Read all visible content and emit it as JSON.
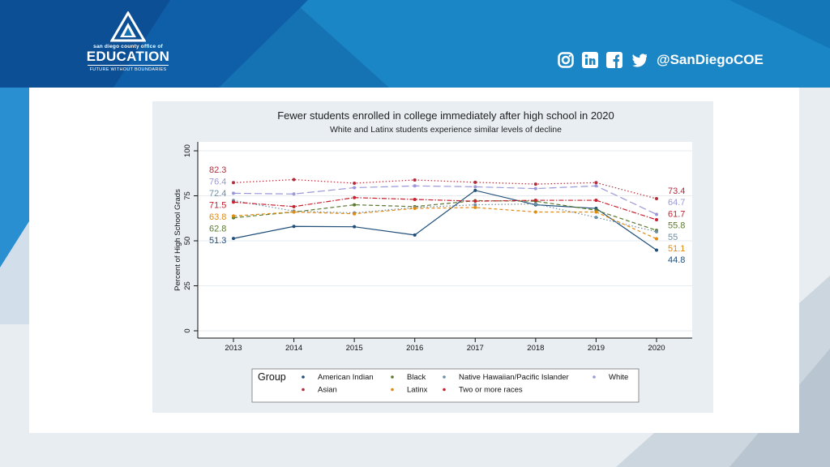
{
  "header": {
    "logo": {
      "line1": "san diego county office of",
      "line2": "EDUCATION",
      "tagline": "FUTURE WITHOUT BOUNDARIES"
    },
    "social": {
      "icons": [
        "instagram-icon",
        "linkedin-icon",
        "facebook-icon",
        "twitter-icon"
      ],
      "handle": "@SanDiegoCOE"
    }
  },
  "chart_data": {
    "type": "line",
    "title": "Fewer students enrolled in college immediately after high school in 2020",
    "subtitle": "White and Latinx students experience similar levels of decline",
    "xlabel": "",
    "ylabel": "Percent of High School Grads",
    "x": [
      2013,
      2014,
      2015,
      2016,
      2017,
      2018,
      2019,
      2020
    ],
    "yticks": [
      0,
      25,
      50,
      75,
      100
    ],
    "ylim": [
      0,
      100
    ],
    "legend_title": "Group",
    "series": [
      {
        "name": "American Indian",
        "color": "#1f4e79",
        "dash": "",
        "values": [
          51.3,
          58.0,
          57.8,
          53.2,
          78.0,
          70.0,
          68.0,
          44.8
        ],
        "start_label": "51.3",
        "end_label": "44.8"
      },
      {
        "name": "Black",
        "color": "#5a7a2e",
        "dash": "5,3",
        "values": [
          62.8,
          66.0,
          70.0,
          69.0,
          72.3,
          72.0,
          67.0,
          55.8
        ],
        "start_label": "62.8",
        "end_label": "55.8"
      },
      {
        "name": "Native Hawaiian/Pacific Islander",
        "color": "#6b8fa6",
        "dash": "1.5,2.5",
        "values": [
          72.4,
          66.5,
          65.5,
          68.5,
          70.0,
          70.5,
          63.0,
          55.0
        ],
        "start_label": "72.4",
        "end_label": "55"
      },
      {
        "name": "White",
        "color": "#9a98d8",
        "dash": "9,4",
        "values": [
          76.4,
          76.0,
          79.5,
          80.5,
          80.0,
          79.0,
          80.5,
          64.7
        ],
        "start_label": "76.4",
        "end_label": "64.7"
      },
      {
        "name": "Asian",
        "color": "#b02e3b",
        "dash": "1.5,2.5",
        "values": [
          82.3,
          84.0,
          82.0,
          83.8,
          82.5,
          81.5,
          82.3,
          73.4
        ],
        "start_label": "82.3",
        "end_label": "73.4"
      },
      {
        "name": "Latinx",
        "color": "#e08a12",
        "dash": "4,3",
        "values": [
          63.8,
          66.0,
          65.0,
          68.0,
          68.5,
          66.0,
          66.0,
          51.1
        ],
        "start_label": "63.8",
        "end_label": "51.1"
      },
      {
        "name": "Two or more races",
        "color": "#c8202f",
        "dash": "6,2,1.5,2",
        "values": [
          71.5,
          69.0,
          74.0,
          73.0,
          72.0,
          72.5,
          72.5,
          61.7
        ],
        "start_label": "71.5",
        "end_label": "61.7"
      }
    ]
  }
}
